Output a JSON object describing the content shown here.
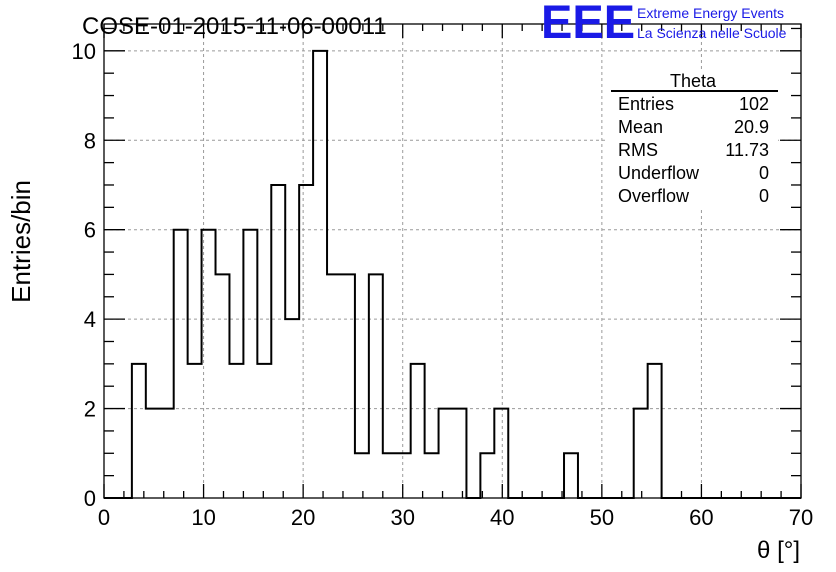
{
  "header": {
    "run_title": "COSE-01-2015-11-06-00011",
    "logo_letters": "EEE",
    "logo_line1": "Extreme Energy Events",
    "logo_line2": "La Scienza nelle Scuole",
    "brand_color": "#1a1ae6"
  },
  "stats_box": {
    "title": "Theta",
    "rows": [
      {
        "label": "Entries",
        "value": "102"
      },
      {
        "label": "Mean",
        "value": "20.9"
      },
      {
        "label": "RMS",
        "value": "11.73"
      },
      {
        "label": "Underflow",
        "value": "0"
      },
      {
        "label": "Overflow",
        "value": "0"
      }
    ]
  },
  "chart_data": {
    "type": "histogram",
    "xlabel": "θ [°]",
    "ylabel": "Entries/bin",
    "xlim": [
      0,
      70
    ],
    "ylim": [
      0,
      10.6
    ],
    "grid": true,
    "line_color": "#000000",
    "x_ticks": [
      0,
      10,
      20,
      30,
      40,
      50,
      60,
      70
    ],
    "y_ticks": [
      0,
      2,
      4,
      6,
      8,
      10
    ],
    "bin_edges": [
      0,
      1.4,
      2.8,
      4.2,
      5.6,
      7.0,
      8.4,
      9.8,
      11.2,
      12.6,
      14.0,
      15.4,
      16.8,
      18.2,
      19.6,
      21.0,
      22.4,
      23.8,
      25.2,
      26.6,
      28.0,
      29.4,
      30.8,
      32.2,
      33.6,
      35.0,
      36.4,
      37.8,
      39.2,
      40.6,
      42.0,
      43.4,
      44.8,
      46.2,
      47.6,
      49.0,
      50.4,
      51.8,
      53.2,
      54.6,
      56.0,
      57.4,
      58.8,
      60.2,
      61.6,
      63.0,
      64.4,
      65.8,
      67.2,
      68.6,
      70.0
    ],
    "counts": [
      0,
      0,
      3,
      2,
      2,
      6,
      3,
      6,
      5,
      3,
      6,
      3,
      7,
      4,
      7,
      10,
      5,
      5,
      1,
      5,
      1,
      1,
      3,
      1,
      2,
      2,
      0,
      1,
      2,
      0,
      0,
      0,
      0,
      1,
      0,
      0,
      0,
      0,
      2,
      3,
      0,
      0,
      0,
      0,
      0,
      0,
      0,
      0,
      0,
      0
    ]
  }
}
